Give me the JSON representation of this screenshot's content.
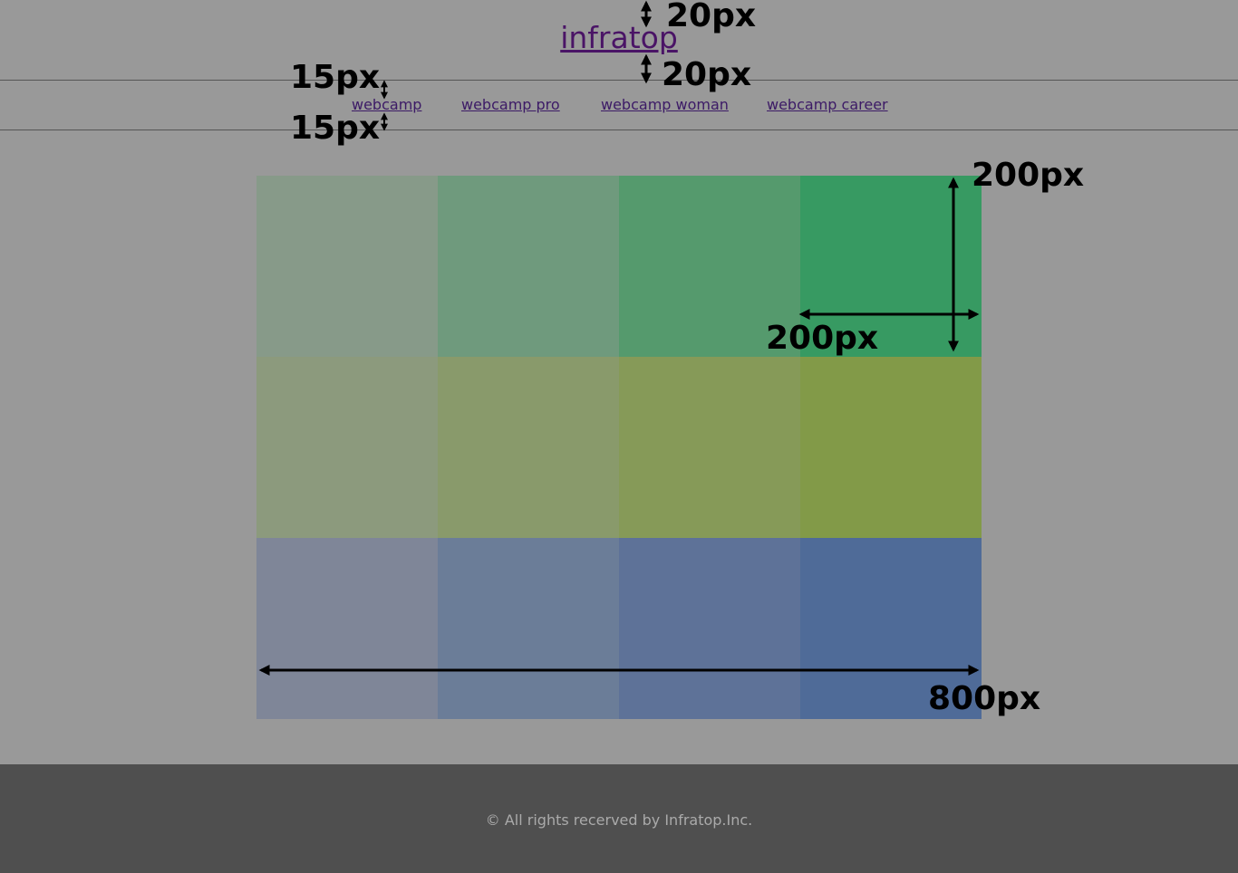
{
  "header": {
    "title": "infratop",
    "nav": [
      "webcamp",
      "webcamp pro",
      "webcamp woman",
      "webcamp career"
    ]
  },
  "annotations": [
    "20px",
    "20px",
    "15px",
    "15px",
    "200px",
    "200px",
    "800px"
  ],
  "footer": {
    "text": "© All rights recerved by Infratop.Inc."
  }
}
